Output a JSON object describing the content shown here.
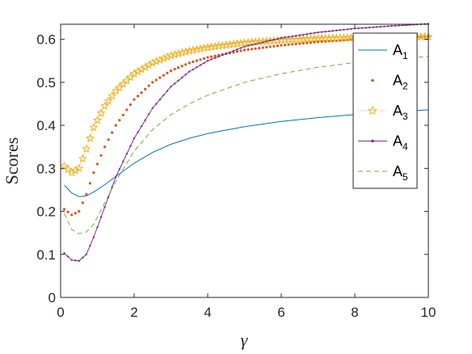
{
  "chart_data": {
    "type": "line",
    "xlabel": "γ",
    "ylabel": "Scores",
    "xlim": [
      0,
      10
    ],
    "ylim": [
      0,
      0.635
    ],
    "xticks": [
      0,
      2,
      4,
      6,
      8,
      10
    ],
    "yticks": [
      0,
      0.1,
      0.2,
      0.3,
      0.4,
      0.5,
      0.6
    ],
    "xtick_labels": [
      "0",
      "2",
      "4",
      "6",
      "8",
      "10"
    ],
    "ytick_labels": [
      "0",
      "0.1",
      "0.2",
      "0.3",
      "0.4",
      "0.5",
      "0.6"
    ],
    "grid": false,
    "legend_position": "top-right",
    "series": [
      {
        "name": "A",
        "sub": "1",
        "color": "#0072BD",
        "style": "solid",
        "marker": "none",
        "x": [
          0.1,
          0.3,
          0.5,
          0.7,
          0.9,
          1.2,
          1.5,
          2,
          2.5,
          3,
          3.5,
          4,
          5,
          6,
          7,
          8,
          9,
          10
        ],
        "y": [
          0.261,
          0.243,
          0.234,
          0.236,
          0.245,
          0.262,
          0.281,
          0.312,
          0.337,
          0.356,
          0.37,
          0.381,
          0.397,
          0.409,
          0.418,
          0.425,
          0.431,
          0.436
        ]
      },
      {
        "name": "A",
        "sub": "2",
        "color": "#D95319",
        "style": "dots",
        "marker": "dot",
        "x": [
          0.1,
          0.3,
          0.5,
          0.7,
          0.9,
          1.2,
          1.5,
          2,
          2.5,
          3,
          3.5,
          4,
          5,
          6,
          7,
          8,
          9,
          10
        ],
        "y": [
          0.205,
          0.192,
          0.2,
          0.24,
          0.29,
          0.35,
          0.4,
          0.46,
          0.5,
          0.527,
          0.545,
          0.558,
          0.575,
          0.586,
          0.594,
          0.6,
          0.604,
          0.607
        ]
      },
      {
        "name": "A",
        "sub": "3",
        "color": "#EDB120",
        "style": "dotted",
        "marker": "star",
        "x": [
          0.1,
          0.3,
          0.5,
          0.7,
          0.9,
          1.2,
          1.5,
          2,
          2.5,
          3,
          3.5,
          4,
          5,
          6,
          7,
          8,
          9,
          10
        ],
        "y": [
          0.305,
          0.29,
          0.3,
          0.345,
          0.395,
          0.445,
          0.48,
          0.52,
          0.545,
          0.562,
          0.573,
          0.581,
          0.592,
          0.598,
          0.602,
          0.604,
          0.605,
          0.606
        ]
      },
      {
        "name": "A",
        "sub": "4",
        "color": "#7E2F8E",
        "style": "solid",
        "marker": "dot",
        "x": [
          0.1,
          0.3,
          0.5,
          0.7,
          0.9,
          1.2,
          1.5,
          2,
          2.5,
          3,
          3.5,
          4,
          5,
          6,
          7,
          8,
          9,
          10
        ],
        "y": [
          0.103,
          0.087,
          0.085,
          0.1,
          0.14,
          0.21,
          0.28,
          0.37,
          0.44,
          0.49,
          0.525,
          0.55,
          0.583,
          0.603,
          0.616,
          0.625,
          0.631,
          0.636
        ]
      },
      {
        "name": "A",
        "sub": "5",
        "color": "#77AC30",
        "style": "dashed",
        "marker": "none",
        "x": [
          0.1,
          0.3,
          0.5,
          0.7,
          0.9,
          1.2,
          1.5,
          2,
          2.5,
          3,
          3.5,
          4,
          5,
          6,
          7,
          8,
          9,
          10
        ],
        "y": [
          0.195,
          0.158,
          0.148,
          0.152,
          0.17,
          0.22,
          0.27,
          0.34,
          0.39,
          0.425,
          0.45,
          0.47,
          0.5,
          0.52,
          0.535,
          0.546,
          0.554,
          0.56
        ]
      }
    ]
  }
}
